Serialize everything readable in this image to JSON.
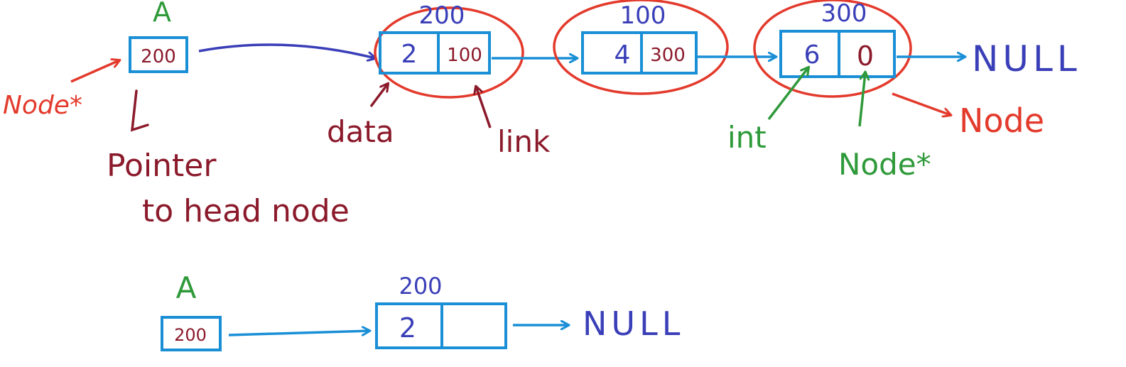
{
  "colors": {
    "blue_box": "#1a8fd6",
    "blue_text": "#3a3fb8",
    "red": "#e33a2c",
    "maroon": "#8b1a2b",
    "green": "#2f9a3a"
  },
  "top": {
    "pointer_name": "A",
    "pointer_value": "200",
    "pointer_type": "Node*",
    "pointer_desc_line1": "Pointer",
    "pointer_desc_line2": "to head node",
    "nodes": [
      {
        "address": "200",
        "data": "2",
        "link": "100"
      },
      {
        "address": "100",
        "data": "4",
        "link": "300"
      },
      {
        "address": "300",
        "data": "6",
        "link": "0"
      }
    ],
    "null_label": "NULL",
    "label_data": "data",
    "label_link": "link",
    "label_int": "int",
    "label_node_ptr": "Node*",
    "label_node": "Node"
  },
  "bottom": {
    "pointer_name": "A",
    "pointer_value": "200",
    "node": {
      "address": "200",
      "data": "2",
      "link": ""
    },
    "null_label": "NULL"
  }
}
